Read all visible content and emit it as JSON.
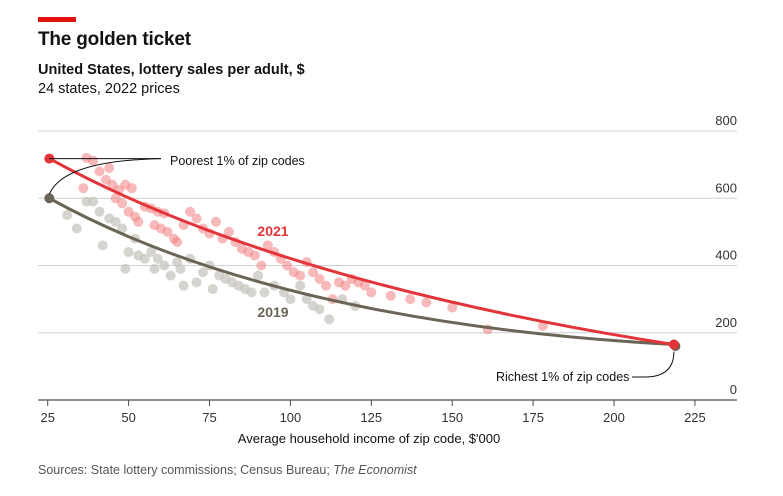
{
  "header": {
    "title": "The golden ticket",
    "subtitle": "United States, lottery sales per adult, $",
    "subtitle2": "24 states, 2022 prices"
  },
  "footer": {
    "source_text": "Sources: State lottery commissions; Census Bureau; ",
    "source_pub": "The Economist"
  },
  "colors": {
    "accent": "#e3120b",
    "line2021": "#e3343a",
    "line2019": "#6b6556",
    "dots2021": "#f08080",
    "dots2019": "#c8c6bf",
    "grid": "#d0d0d0",
    "axis": "#4d4d4d"
  },
  "chart_data": {
    "type": "scatter",
    "xlabel": "Average household income of zip code, $'000",
    "ylabel": "",
    "xlim": [
      22,
      238
    ],
    "ylim": [
      0,
      800
    ],
    "xticks": [
      "25",
      "50",
      "75",
      "100",
      "125",
      "150",
      "175",
      "200",
      "225"
    ],
    "yticks": [
      "0",
      "200",
      "400",
      "600",
      "800"
    ],
    "annotations": {
      "poorest": "Poorest 1% of zip codes",
      "richest": "Richest 1% of zip codes"
    },
    "series": [
      {
        "name": "2021",
        "label": "2021",
        "fit_start": [
          25.5,
          718
        ],
        "fit_ctrl": [
          95,
          350
        ],
        "fit_end": [
          218.5,
          165
        ],
        "points": [
          [
            37,
            720
          ],
          [
            39,
            712
          ],
          [
            41,
            680
          ],
          [
            43,
            655
          ],
          [
            44,
            690
          ],
          [
            45,
            640
          ],
          [
            47,
            625
          ],
          [
            49,
            640
          ],
          [
            51,
            630
          ],
          [
            36,
            630
          ],
          [
            46,
            600
          ],
          [
            48,
            585
          ],
          [
            50,
            560
          ],
          [
            52,
            545
          ],
          [
            53,
            530
          ],
          [
            55,
            575
          ],
          [
            57,
            570
          ],
          [
            59,
            560
          ],
          [
            61,
            555
          ],
          [
            58,
            520
          ],
          [
            60,
            510
          ],
          [
            62,
            500
          ],
          [
            64,
            480
          ],
          [
            65,
            470
          ],
          [
            67,
            520
          ],
          [
            69,
            560
          ],
          [
            71,
            540
          ],
          [
            73,
            510
          ],
          [
            75,
            495
          ],
          [
            77,
            530
          ],
          [
            79,
            480
          ],
          [
            81,
            500
          ],
          [
            83,
            470
          ],
          [
            85,
            450
          ],
          [
            87,
            440
          ],
          [
            89,
            430
          ],
          [
            91,
            400
          ],
          [
            93,
            460
          ],
          [
            95,
            440
          ],
          [
            97,
            420
          ],
          [
            99,
            400
          ],
          [
            101,
            380
          ],
          [
            103,
            370
          ],
          [
            105,
            410
          ],
          [
            107,
            380
          ],
          [
            109,
            360
          ],
          [
            111,
            340
          ],
          [
            113,
            300
          ],
          [
            115,
            350
          ],
          [
            117,
            340
          ],
          [
            119,
            360
          ],
          [
            121,
            350
          ],
          [
            123,
            340
          ],
          [
            125,
            320
          ],
          [
            131,
            310
          ],
          [
            137,
            300
          ],
          [
            142,
            290
          ],
          [
            150,
            275
          ],
          [
            161,
            210
          ],
          [
            178,
            220
          ]
        ]
      },
      {
        "name": "2019",
        "label": "2019",
        "fit_start": [
          25.5,
          600
        ],
        "fit_ctrl": [
          95,
          230
        ],
        "fit_end": [
          218.5,
          165
        ],
        "points": [
          [
            31,
            550
          ],
          [
            34,
            510
          ],
          [
            37,
            590
          ],
          [
            39,
            590
          ],
          [
            41,
            560
          ],
          [
            42,
            460
          ],
          [
            44,
            540
          ],
          [
            46,
            530
          ],
          [
            48,
            510
          ],
          [
            49,
            390
          ],
          [
            50,
            440
          ],
          [
            52,
            480
          ],
          [
            53,
            430
          ],
          [
            55,
            420
          ],
          [
            57,
            440
          ],
          [
            58,
            390
          ],
          [
            59,
            420
          ],
          [
            61,
            400
          ],
          [
            63,
            370
          ],
          [
            65,
            410
          ],
          [
            66,
            390
          ],
          [
            67,
            340
          ],
          [
            69,
            420
          ],
          [
            71,
            350
          ],
          [
            73,
            380
          ],
          [
            75,
            400
          ],
          [
            76,
            330
          ],
          [
            78,
            370
          ],
          [
            80,
            360
          ],
          [
            82,
            350
          ],
          [
            84,
            340
          ],
          [
            86,
            330
          ],
          [
            88,
            320
          ],
          [
            90,
            370
          ],
          [
            92,
            320
          ],
          [
            95,
            340
          ],
          [
            98,
            320
          ],
          [
            100,
            300
          ],
          [
            103,
            340
          ],
          [
            105,
            300
          ],
          [
            107,
            280
          ],
          [
            109,
            270
          ],
          [
            112,
            240
          ],
          [
            116,
            300
          ],
          [
            120,
            280
          ]
        ]
      }
    ]
  }
}
